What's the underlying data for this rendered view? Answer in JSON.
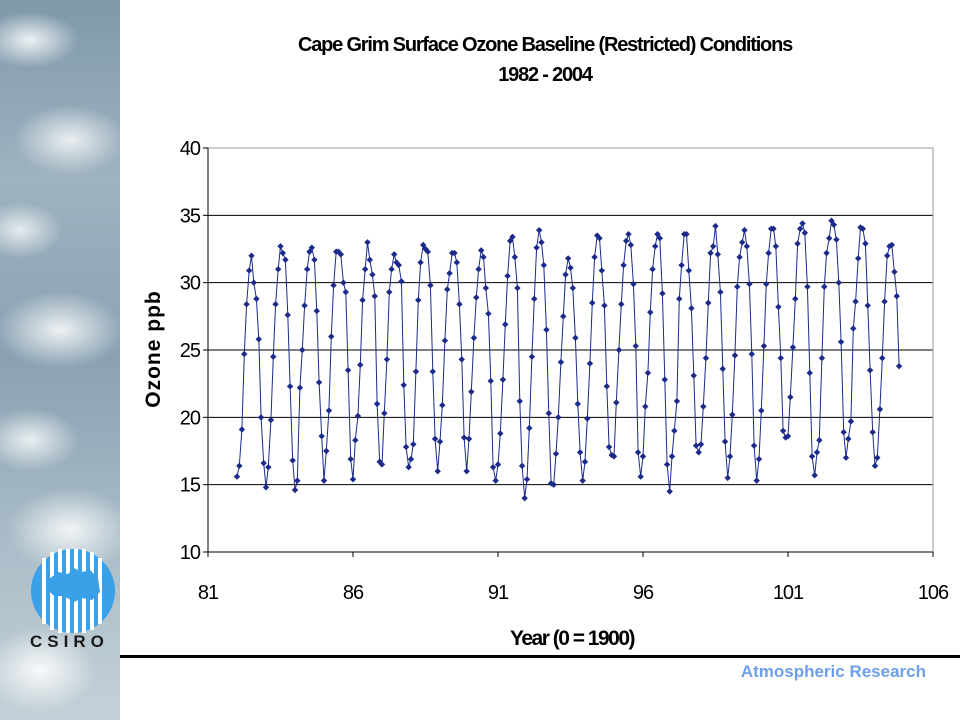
{
  "header": {
    "title_line1": "Cape Grim Surface Ozone Baseline (Restricted) Conditions",
    "title_line2": "1982 - 2004"
  },
  "logo": {
    "text": "CSIRO",
    "color": "#3aa0e8"
  },
  "footer": {
    "text": "Atmospheric Research",
    "color": "#6f9fe6"
  },
  "chart_data": {
    "type": "line",
    "title": "Cape Grim Surface Ozone Baseline (Restricted) Conditions 1982 - 2004",
    "xlabel": "Year (0 = 1900)",
    "ylabel": "Ozone ppb",
    "xlim": [
      81,
      106
    ],
    "ylim": [
      10,
      40
    ],
    "xticks": [
      81,
      86,
      91,
      96,
      101,
      106
    ],
    "yticks": [
      10,
      15,
      20,
      25,
      30,
      35,
      40
    ],
    "grid": "horizontal",
    "line_color": "#1c2a8a",
    "series": [
      {
        "x": [
          82.0,
          82.08,
          82.17,
          82.25,
          82.33,
          82.42,
          82.5,
          82.58,
          82.67,
          82.75,
          82.83,
          82.92,
          83.0,
          83.08,
          83.17,
          83.25,
          83.33,
          83.42,
          83.5,
          83.58,
          83.67,
          83.75,
          83.83,
          83.92,
          84.0,
          84.08,
          84.17,
          84.25,
          84.33,
          84.42,
          84.5,
          84.58,
          84.67,
          84.75,
          84.83,
          84.92,
          85.0,
          85.08,
          85.17,
          85.25,
          85.33,
          85.42,
          85.5,
          85.58,
          85.67,
          85.75,
          85.83,
          85.92,
          86.0,
          86.08,
          86.17,
          86.25,
          86.33,
          86.42,
          86.5,
          86.58,
          86.67,
          86.75,
          86.83,
          86.92,
          87.0,
          87.08,
          87.17,
          87.25,
          87.33,
          87.42,
          87.5,
          87.58,
          87.67,
          87.75,
          87.83,
          87.92,
          88.0,
          88.08,
          88.17,
          88.25,
          88.33,
          88.42,
          88.5,
          88.58,
          88.67,
          88.75,
          88.83,
          88.92,
          89.0,
          89.08,
          89.17,
          89.25,
          89.33,
          89.42,
          89.5,
          89.58,
          89.67,
          89.75,
          89.83,
          89.92,
          90.0,
          90.08,
          90.17,
          90.25,
          90.33,
          90.42,
          90.5,
          90.58,
          90.67,
          90.75,
          90.83,
          90.92,
          91.0,
          91.08,
          91.17,
          91.25,
          91.33,
          91.42,
          91.5,
          91.58,
          91.67,
          91.75,
          91.83,
          91.92,
          92.0,
          92.08,
          92.17,
          92.25,
          92.33,
          92.42,
          92.5,
          92.58,
          92.67,
          92.75,
          92.83,
          92.92,
          93.0,
          93.08,
          93.17,
          93.25,
          93.33,
          93.42,
          93.5,
          93.58,
          93.67,
          93.75,
          93.83,
          93.92,
          94.0,
          94.08,
          94.17,
          94.25,
          94.33,
          94.42,
          94.5,
          94.58,
          94.67,
          94.75,
          94.83,
          94.92,
          95.0,
          95.08,
          95.17,
          95.25,
          95.33,
          95.42,
          95.5,
          95.58,
          95.67,
          95.75,
          95.83,
          95.92,
          96.0,
          96.08,
          96.17,
          96.25,
          96.33,
          96.42,
          96.5,
          96.58,
          96.67,
          96.75,
          96.83,
          96.92,
          97.0,
          97.08,
          97.17,
          97.25,
          97.33,
          97.42,
          97.5,
          97.58,
          97.67,
          97.75,
          97.83,
          97.92,
          98.0,
          98.08,
          98.17,
          98.25,
          98.33,
          98.42,
          98.5,
          98.58,
          98.67,
          98.75,
          98.83,
          98.92,
          99.0,
          99.08,
          99.17,
          99.25,
          99.33,
          99.42,
          99.5,
          99.58,
          99.67,
          99.75,
          99.83,
          99.92,
          100.0,
          100.08,
          100.17,
          100.25,
          100.33,
          100.42,
          100.5,
          100.58,
          100.67,
          100.75,
          100.83,
          100.92,
          101.0,
          101.08,
          101.17,
          101.25,
          101.33,
          101.42,
          101.5,
          101.58,
          101.67,
          101.75,
          101.83,
          101.92,
          102.0,
          102.08,
          102.17,
          102.25,
          102.33,
          102.42,
          102.5,
          102.58,
          102.67,
          102.75,
          102.83,
          102.92,
          103.0,
          103.08,
          103.17,
          103.25,
          103.33,
          103.42,
          103.5,
          103.58,
          103.67,
          103.75,
          103.83,
          103.92,
          104.0,
          104.08,
          104.17,
          104.25,
          104.33,
          104.42,
          104.5,
          104.58,
          104.67,
          104.75,
          104.83
        ],
        "y": [
          15.6,
          16.4,
          19.1,
          24.7,
          28.4,
          30.9,
          32.0,
          30.0,
          28.8,
          25.8,
          20.0,
          16.6,
          14.8,
          16.3,
          19.8,
          24.5,
          28.4,
          31.0,
          32.7,
          32.2,
          31.7,
          27.6,
          22.3,
          16.8,
          14.6,
          15.3,
          22.2,
          25.0,
          28.3,
          31.0,
          32.3,
          32.6,
          31.7,
          27.9,
          22.6,
          18.6,
          15.3,
          17.5,
          20.5,
          26.0,
          29.8,
          32.3,
          32.3,
          32.1,
          30.0,
          29.3,
          23.5,
          16.9,
          15.4,
          18.3,
          20.1,
          23.9,
          28.7,
          31.0,
          33.0,
          31.7,
          30.6,
          29.0,
          21.0,
          16.7,
          16.5,
          20.3,
          24.3,
          29.3,
          31.0,
          32.1,
          31.5,
          31.3,
          30.1,
          22.4,
          17.8,
          16.3,
          16.9,
          18.0,
          23.4,
          28.7,
          31.5,
          32.8,
          32.5,
          32.3,
          29.8,
          23.4,
          18.4,
          16.0,
          18.2,
          20.9,
          25.7,
          29.5,
          30.7,
          32.2,
          32.2,
          31.5,
          28.4,
          24.3,
          18.5,
          16.0,
          18.4,
          21.9,
          25.9,
          28.9,
          31.0,
          32.4,
          31.9,
          29.6,
          27.7,
          22.7,
          16.3,
          15.3,
          16.5,
          18.8,
          22.8,
          26.9,
          30.5,
          33.1,
          33.4,
          31.9,
          29.6,
          21.2,
          16.4,
          14.0,
          15.4,
          19.2,
          24.5,
          28.8,
          32.6,
          33.9,
          33.0,
          31.3,
          26.5,
          20.3,
          15.1,
          15.0,
          17.3,
          20.0,
          24.1,
          27.5,
          30.6,
          31.8,
          31.1,
          29.6,
          25.9,
          21.0,
          17.4,
          15.3,
          16.7,
          19.9,
          24.0,
          28.5,
          31.9,
          33.5,
          33.3,
          30.9,
          28.3,
          22.3,
          17.8,
          17.2,
          17.1,
          21.1,
          25.0,
          28.4,
          31.3,
          33.1,
          33.6,
          32.8,
          29.9,
          25.3,
          17.4,
          15.6,
          17.1,
          20.8,
          23.3,
          27.8,
          31.0,
          32.7,
          33.6,
          33.3,
          29.2,
          22.8,
          16.5,
          14.5,
          17.1,
          19.0,
          21.2,
          28.8,
          31.3,
          33.6,
          33.6,
          30.9,
          28.1,
          23.1,
          17.9,
          17.4,
          18.0,
          20.8,
          24.4,
          28.5,
          32.2,
          32.7,
          34.2,
          32.1,
          29.3,
          23.6,
          18.2,
          15.5,
          17.1,
          20.2,
          24.6,
          29.7,
          31.9,
          33.0,
          33.9,
          32.7,
          29.9,
          24.7,
          17.9,
          15.3,
          16.9,
          20.5,
          25.3,
          29.9,
          32.2,
          34.0,
          34.0,
          32.7,
          28.2,
          24.4,
          19.0,
          18.5,
          18.6,
          21.5,
          25.2,
          28.8,
          32.9,
          34.0,
          34.4,
          33.7,
          29.7,
          23.3,
          17.1,
          15.7,
          17.4,
          18.3,
          24.4,
          29.7,
          32.2,
          33.3,
          34.6,
          34.3,
          33.2,
          30.0,
          25.6,
          18.9,
          17.0,
          18.4,
          19.7,
          26.6,
          28.6,
          31.8,
          34.1,
          34.0,
          32.9,
          28.3,
          23.5,
          18.9,
          16.4,
          17.0,
          20.6,
          24.4,
          28.6,
          32.0,
          32.7,
          32.8,
          30.8,
          29.0,
          23.8
        ]
      }
    ]
  }
}
